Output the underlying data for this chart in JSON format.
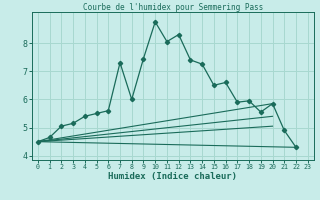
{
  "title": "Courbe de l'humidex pour Semmering Pass",
  "xlabel": "Humidex (Indice chaleur)",
  "bg_color": "#c8ece9",
  "grid_color": "#a8d8d0",
  "line_color": "#1a6b5a",
  "xlim": [
    -0.5,
    23.5
  ],
  "ylim": [
    3.85,
    9.1
  ],
  "yticks": [
    4,
    5,
    6,
    7,
    8
  ],
  "xticks": [
    0,
    1,
    2,
    3,
    4,
    5,
    6,
    7,
    8,
    9,
    10,
    11,
    12,
    13,
    14,
    15,
    16,
    17,
    18,
    19,
    20,
    21,
    22,
    23
  ],
  "main_line_x": [
    0,
    1,
    2,
    3,
    4,
    5,
    6,
    7,
    8,
    9,
    10,
    11,
    12,
    13,
    14,
    15,
    16,
    17,
    18,
    19,
    20,
    21,
    22
  ],
  "main_line_y": [
    4.5,
    4.65,
    5.05,
    5.15,
    5.4,
    5.5,
    5.6,
    7.3,
    6.0,
    7.45,
    8.75,
    8.05,
    8.3,
    7.4,
    7.25,
    6.5,
    6.6,
    5.9,
    5.95,
    5.55,
    5.85,
    4.9,
    4.3
  ],
  "ref_line1_x": [
    0,
    22
  ],
  "ref_line1_y": [
    4.5,
    4.3
  ],
  "ref_line2_x": [
    0,
    20
  ],
  "ref_line2_y": [
    4.5,
    5.85
  ],
  "ref_line3_x": [
    0,
    20
  ],
  "ref_line3_y": [
    4.5,
    5.4
  ],
  "ref_line4_x": [
    0,
    20
  ],
  "ref_line4_y": [
    4.5,
    5.05
  ]
}
